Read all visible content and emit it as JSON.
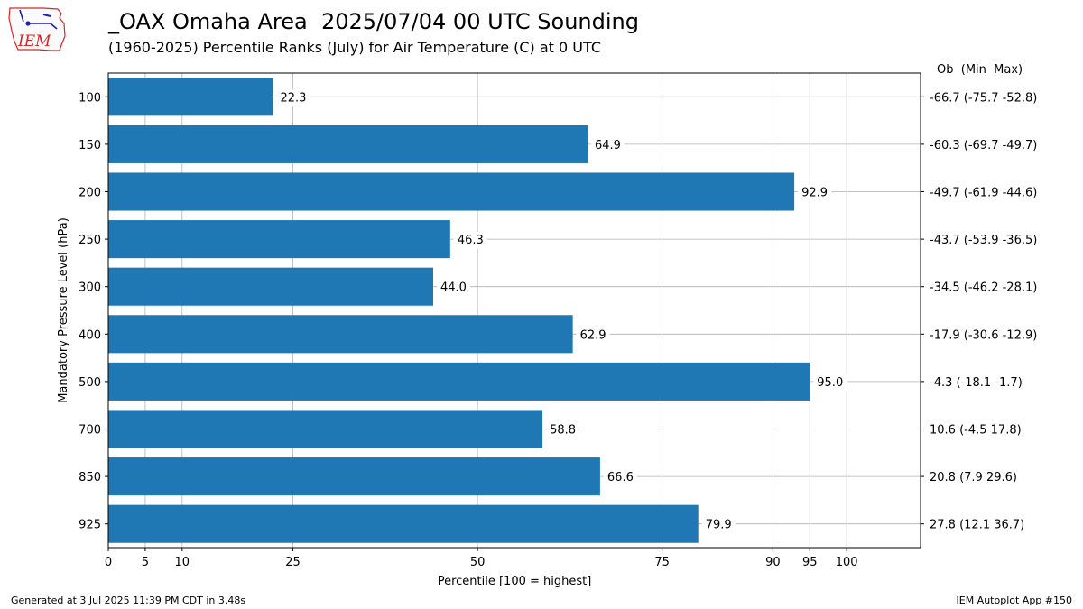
{
  "header": {
    "title": "_OAX Omaha Area  2025/07/04 00 UTC Sounding",
    "subtitle": "(1960-2025) Percentile Ranks (July) for Air Temperature (C) at 0 UTC",
    "logo_text": "IEM"
  },
  "footer": {
    "left": "Generated at 3 Jul 2025 11:39 PM CDT in 3.48s",
    "right": "IEM Autoplot App #150"
  },
  "colors": {
    "bar": "#1f77b4",
    "grid": "#b0b0b0",
    "logo": "#d62728"
  },
  "chart_data": {
    "type": "bar",
    "orientation": "horizontal",
    "categories": [
      "100",
      "150",
      "200",
      "250",
      "300",
      "400",
      "500",
      "700",
      "850",
      "925"
    ],
    "values": [
      22.3,
      64.9,
      92.9,
      46.3,
      44.0,
      62.9,
      95.0,
      58.8,
      66.6,
      79.9
    ],
    "value_labels": [
      "22.3",
      "64.9",
      "92.9",
      "46.3",
      "44.0",
      "62.9",
      "95.0",
      "58.8",
      "66.6",
      "79.9"
    ],
    "right_header": "Ob  (Min  Max)",
    "right_labels": [
      "-66.7 (-75.7 -52.8)",
      "-60.3 (-69.7 -49.7)",
      "-49.7 (-61.9 -44.6)",
      "-43.7 (-53.9 -36.5)",
      "-34.5 (-46.2 -28.1)",
      "-17.9 (-30.6 -12.9)",
      "-4.3 (-18.1 -1.7)",
      "10.6 (-4.5 17.8)",
      "20.8 (7.9 29.6)",
      "27.8 (12.1 36.7)"
    ],
    "xlabel": "Percentile [100 = highest]",
    "ylabel": "Mandatory Pressure Level (hPa)",
    "xticks": [
      0,
      5,
      10,
      25,
      50,
      75,
      90,
      95,
      100
    ],
    "xlim": [
      0,
      110
    ],
    "grid": true
  }
}
